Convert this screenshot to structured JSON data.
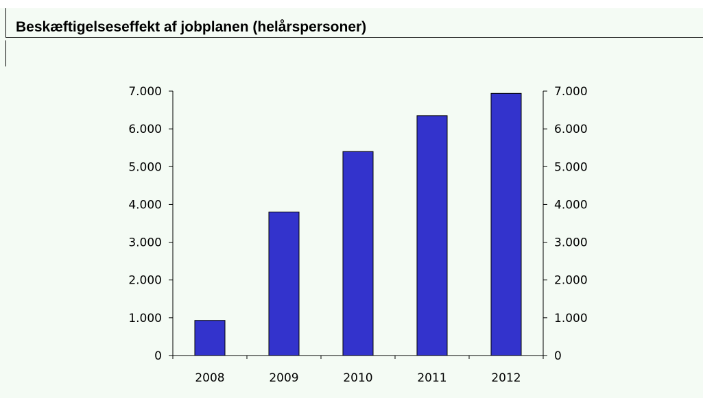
{
  "title": "Beskæftigelseseffekt af jobplanen (helårspersoner)",
  "chart_data": {
    "type": "bar",
    "title": "Beskæftigelseseffekt af jobplanen (helårspersoner)",
    "categories": [
      "2008",
      "2009",
      "2010",
      "2011",
      "2012"
    ],
    "values": [
      930,
      3800,
      5400,
      6350,
      6940
    ],
    "ylim": [
      0,
      7000
    ],
    "yticks": [
      0,
      1000,
      2000,
      3000,
      4000,
      5000,
      6000,
      7000
    ],
    "ytick_labels": [
      "0",
      "1.000",
      "2.000",
      "3.000",
      "4.000",
      "5.000",
      "6.000",
      "7.000"
    ],
    "secondary_y_axis": true,
    "grid": false,
    "bar_color": "#3333cc",
    "xlabel": "",
    "ylabel": ""
  }
}
